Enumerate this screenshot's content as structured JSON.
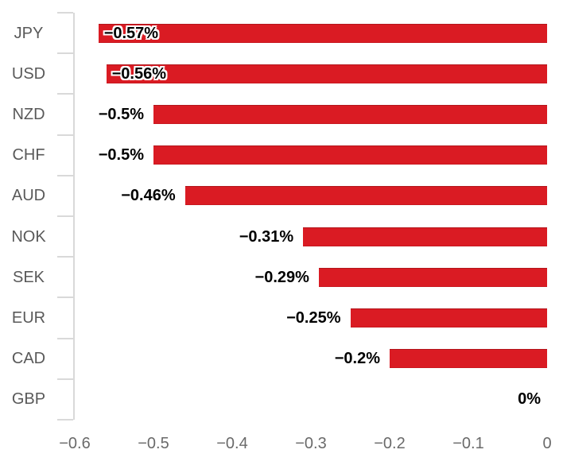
{
  "chart": {
    "background_color": "#ffffff",
    "bar_color": "#da1b23",
    "axis_line_color": "#d9d9d9",
    "category_label_color": "#595959",
    "tick_label_color": "#6a6a6a",
    "value_label_color": "#000000"
  },
  "chart_data": {
    "type": "bar",
    "orientation": "horizontal",
    "title": "",
    "xlabel": "",
    "ylabel": "",
    "categories": [
      "JPY",
      "USD",
      "NZD",
      "CHF",
      "AUD",
      "NOK",
      "SEK",
      "EUR",
      "CAD",
      "GBP"
    ],
    "values": [
      -0.57,
      -0.56,
      -0.5,
      -0.5,
      -0.46,
      -0.31,
      -0.29,
      -0.25,
      -0.2,
      0
    ],
    "data_labels": [
      "−0.57%",
      "−0.56%",
      "−0.5%",
      "−0.5%",
      "−0.46%",
      "−0.31%",
      "−0.29%",
      "−0.25%",
      "−0.2%",
      "0%"
    ],
    "label_placement": [
      "inside",
      "inside",
      "outside",
      "outside",
      "outside",
      "outside",
      "outside",
      "outside",
      "outside",
      "outside"
    ],
    "xlim": [
      -0.6,
      0
    ],
    "x_ticks": [
      -0.6,
      -0.5,
      -0.4,
      -0.3,
      -0.2,
      -0.1,
      0
    ],
    "x_tick_labels": [
      "−0.6",
      "−0.5",
      "−0.4",
      "−0.3",
      "−0.2",
      "−0.1",
      "0"
    ],
    "grid": false,
    "legend": false
  }
}
